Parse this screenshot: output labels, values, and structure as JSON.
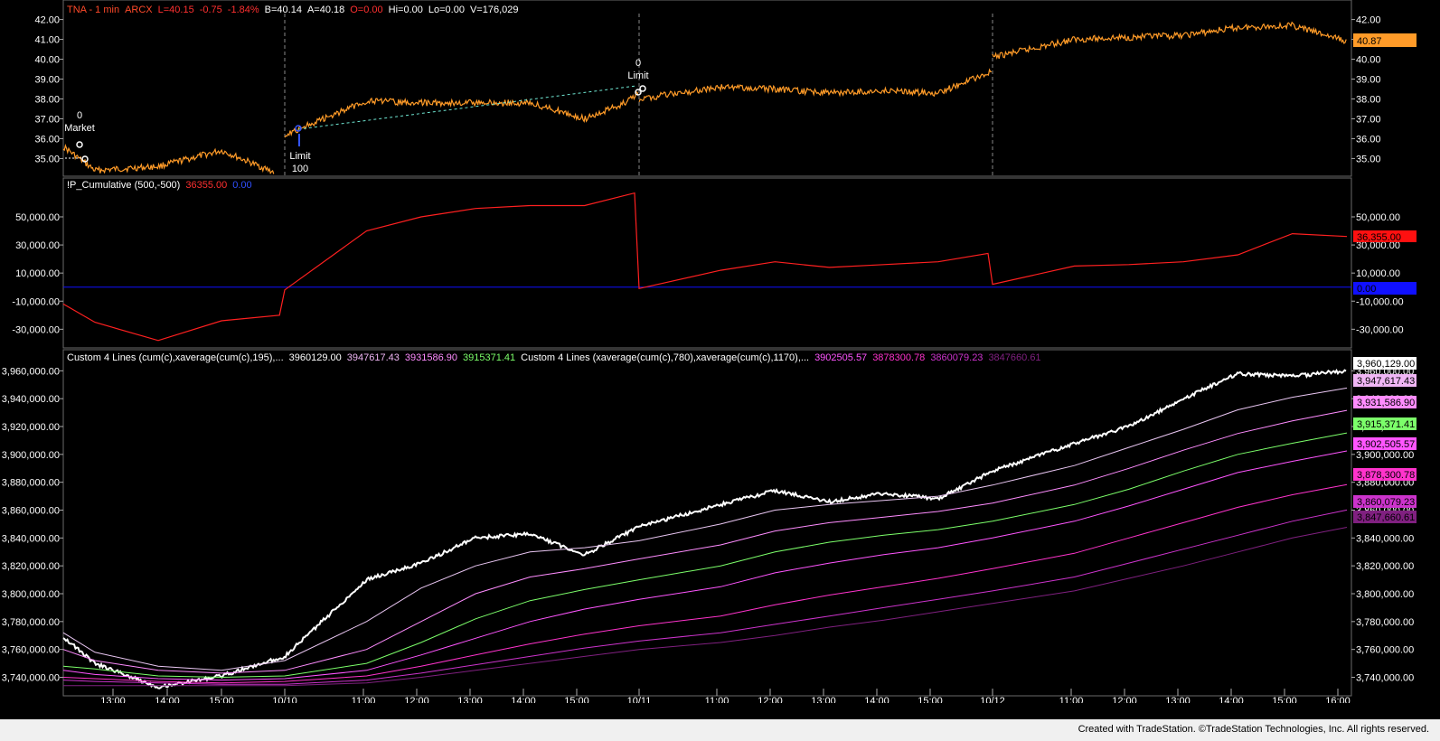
{
  "window": {
    "footer_text": "Created with TradeStation. ©TradeStation Technologies, Inc. All rights reserved."
  },
  "colors": {
    "price": "#ff9b28",
    "pcum": "#ff2020",
    "zero": "#1010ff",
    "cum": "#ffffff",
    "ma1": "#e9c6f2",
    "ma2": "#ff8cff",
    "ma3": "#7cff6a",
    "ma4": "#ff55ff",
    "ma5": "#ff33cc",
    "ma6": "#cc33cc",
    "ma7": "#802080",
    "grid": "#4a4a4a",
    "sep": "#6a6a6a",
    "axis_text": "#ffffff"
  },
  "panel1": {
    "header": {
      "symbol": "TNA - 1 min",
      "exchange": "ARCX",
      "last": "L=40.15",
      "chg": "-0.75",
      "pct": "-1.84%",
      "bid": "B=40.14",
      "ask": "A=40.18",
      "open": "O=0.00",
      "hi": "Hi=0.00",
      "lo": "Lo=0.00",
      "vol": "V=176,029"
    },
    "last_price_label": "40.87",
    "yticks": [
      "42.00",
      "41.00",
      "40.00",
      "39.00",
      "38.00",
      "37.00",
      "36.00",
      "35.00"
    ],
    "annotations": [
      {
        "qty": "0",
        "type": "Market"
      },
      {
        "qty": "100",
        "type": "Limit"
      },
      {
        "qty": "0",
        "type": "Limit"
      }
    ]
  },
  "panel2": {
    "header": {
      "name": "!P_Cumulative (500,-500)",
      "v1": "36355.00",
      "v2": "0.00"
    },
    "yticks": [
      "50,000.00",
      "30,000.00",
      "10,000.00",
      "-10,000.00",
      "-30,000.00"
    ],
    "last_label": "36,355.00",
    "zero_label": "0.00"
  },
  "panel3": {
    "header": {
      "name1": "Custom 4 Lines (cum(c),xaverage(cum(c),195),...",
      "v1": "3960129.00",
      "v2": "3947617.43",
      "v3": "3931586.90",
      "v4": "3915371.41",
      "name2": "Custom 4 Lines (xaverage(cum(c),780),xaverage(cum(c),1170),...",
      "v5": "3902505.57",
      "v6": "3878300.78",
      "v7": "3860079.23",
      "v8": "3847660.61"
    },
    "yticks": [
      "3,960,000.00",
      "3,940,000.00",
      "3,920,000.00",
      "3,900,000.00",
      "3,880,000.00",
      "3,860,000.00",
      "3,840,000.00",
      "3,820,000.00",
      "3,800,000.00",
      "3,780,000.00",
      "3,760,000.00",
      "3,740,000.00"
    ],
    "labels": [
      "3,960,129.00",
      "3,947,617.43",
      "3,931,586.90",
      "3,915,371.41",
      "3,902,505.57",
      "3,878,300.78",
      "3,860,079.23",
      "3,847,660.61"
    ]
  },
  "xaxis": {
    "ticks": [
      "13:00",
      "14:00",
      "15:00",
      "10/10",
      "11:00",
      "12:00",
      "13:00",
      "14:00",
      "15:00",
      "10/11",
      "11:00",
      "12:00",
      "13:00",
      "14:00",
      "15:00",
      "10/12",
      "11:00",
      "12:00",
      "13:00",
      "14:00",
      "15:00",
      "16:00"
    ]
  },
  "chart_data": [
    {
      "type": "line",
      "title": "TNA - 1 min",
      "x": [
        "10/9 12:30",
        "10/9 13:00",
        "10/9 14:00",
        "10/9 15:00",
        "10/9 15:50",
        "10/10 09:30",
        "10/10 11:00",
        "10/10 12:00",
        "10/10 13:00",
        "10/10 14:00",
        "10/10 15:00",
        "10/10 15:40",
        "10/10 16:00",
        "10/11 09:30",
        "10/11 11:00",
        "10/11 12:00",
        "10/11 13:00",
        "10/11 14:00",
        "10/11 15:00",
        "10/11 16:00",
        "10/12 09:30",
        "10/12 11:00",
        "10/12 12:00",
        "10/12 13:00",
        "10/12 14:00",
        "10/12 15:00",
        "10/12 16:00"
      ],
      "series": [
        {
          "values": [
            35.6,
            34.4,
            34.6,
            35.4,
            34.3,
            36.2,
            37.9,
            37.8,
            37.8,
            37.8,
            37.0,
            37.7,
            38.3,
            38.0,
            38.6,
            38.5,
            38.3,
            38.4,
            38.3,
            39.4,
            40.1,
            41.0,
            41.1,
            41.2,
            41.6,
            41.7,
            40.9
          ]
        }
      ],
      "ylim": [
        34.2,
        42.3
      ]
    },
    {
      "type": "line",
      "title": "!P_Cumulative (500,-500)",
      "x": [
        "10/9 12:30",
        "10/9 13:00",
        "10/9 14:00",
        "10/9 15:00",
        "10/9 15:55",
        "10/10 09:30",
        "10/10 11:00",
        "10/10 12:00",
        "10/10 13:00",
        "10/10 14:00",
        "10/10 15:00",
        "10/10 15:55",
        "10/11 09:30",
        "10/11 11:00",
        "10/11 12:00",
        "10/11 13:00",
        "10/11 14:00",
        "10/11 15:00",
        "10/11 15:55",
        "10/12 09:30",
        "10/12 11:00",
        "10/12 12:00",
        "10/12 13:00",
        "10/12 14:00",
        "10/12 15:00",
        "10/12 16:00"
      ],
      "series": [
        {
          "values": [
            -12000,
            -25000,
            -38000,
            -24000,
            -20000,
            -2000,
            40000,
            50000,
            56000,
            58000,
            58000,
            67000,
            -1000,
            12000,
            18000,
            14000,
            16000,
            18000,
            24000,
            2000,
            15000,
            16000,
            18000,
            23000,
            38000,
            36000
          ]
        }
      ],
      "ylim": [
        -42000,
        68000
      ]
    },
    {
      "type": "line",
      "title": "Custom 4 Lines",
      "x": [
        "10/9 12:30",
        "10/9 13:00",
        "10/9 14:00",
        "10/9 15:00",
        "10/10 09:30",
        "10/10 11:00",
        "10/10 12:00",
        "10/10 13:00",
        "10/10 14:00",
        "10/10 15:00",
        "10/11 09:30",
        "10/11 11:00",
        "10/11 12:00",
        "10/11 13:00",
        "10/11 14:00",
        "10/11 15:00",
        "10/12 09:30",
        "10/12 11:00",
        "10/12 12:00",
        "10/12 13:00",
        "10/12 14:00",
        "10/12 15:00",
        "10/12 16:00"
      ],
      "series": [
        {
          "values": [
            3769000,
            3750000,
            3733000,
            3741000,
            3755000,
            3810000,
            3822000,
            3840000,
            3843000,
            3828000,
            3848000,
            3864000,
            3874000,
            3866000,
            3872000,
            3868000,
            3888000,
            3908000,
            3920000,
            3940000,
            3958000,
            3956000,
            3960129
          ]
        },
        {
          "values": [
            3772000,
            3758000,
            3748000,
            3745000,
            3752000,
            3780000,
            3804000,
            3820000,
            3830000,
            3833000,
            3838000,
            3850000,
            3860000,
            3864000,
            3867000,
            3870000,
            3878000,
            3892000,
            3905000,
            3918000,
            3932000,
            3941000,
            3947617
          ]
        },
        {
          "values": [
            3760000,
            3752000,
            3745000,
            3743000,
            3745000,
            3760000,
            3780000,
            3800000,
            3812000,
            3818000,
            3825000,
            3835000,
            3845000,
            3851000,
            3855000,
            3859000,
            3865000,
            3878000,
            3890000,
            3903000,
            3915000,
            3924000,
            3931587
          ]
        },
        {
          "values": [
            3748000,
            3746000,
            3741000,
            3740000,
            3741000,
            3750000,
            3765000,
            3782000,
            3795000,
            3803000,
            3810000,
            3820000,
            3830000,
            3837000,
            3842000,
            3846000,
            3852000,
            3864000,
            3875000,
            3888000,
            3900000,
            3908000,
            3915371
          ]
        },
        {
          "values": [
            3745000,
            3742000,
            3739000,
            3738000,
            3739000,
            3745000,
            3756000,
            3768000,
            3780000,
            3789000,
            3796000,
            3805000,
            3815000,
            3822000,
            3828000,
            3833000,
            3840000,
            3852000,
            3863000,
            3875000,
            3887000,
            3895000,
            3902506
          ]
        },
        {
          "values": [
            3740000,
            3739000,
            3737000,
            3736000,
            3737000,
            3741000,
            3748000,
            3756000,
            3764000,
            3771000,
            3777000,
            3784000,
            3792000,
            3799000,
            3805000,
            3811000,
            3818000,
            3829000,
            3840000,
            3851000,
            3862000,
            3871000,
            3878301
          ]
        },
        {
          "values": [
            3738000,
            3737000,
            3736000,
            3735000,
            3735000,
            3738000,
            3743000,
            3749000,
            3755000,
            3761000,
            3766000,
            3772000,
            3778000,
            3784000,
            3790000,
            3796000,
            3802000,
            3812000,
            3822000,
            3832000,
            3842000,
            3852000,
            3860079
          ]
        },
        {
          "values": [
            3734000,
            3734000,
            3734000,
            3734000,
            3734000,
            3736000,
            3740000,
            3745000,
            3750000,
            3755000,
            3760000,
            3765000,
            3770000,
            3776000,
            3781000,
            3787000,
            3793000,
            3802000,
            3811000,
            3820000,
            3830000,
            3840000,
            3847661
          ]
        }
      ],
      "ylim": [
        3728000,
        3968000
      ]
    }
  ]
}
